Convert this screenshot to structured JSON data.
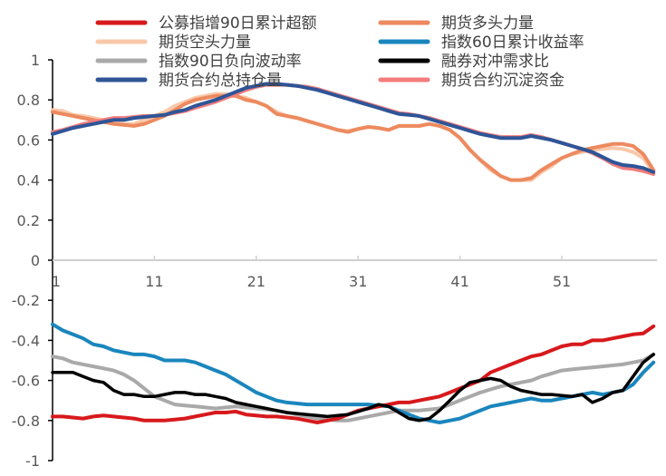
{
  "chart_data": {
    "type": "line",
    "title": "",
    "xlabel": "",
    "ylabel": "",
    "ylim": [
      -1,
      1
    ],
    "yticks": [
      "1",
      "0.8",
      "0.6",
      "0.4",
      "0.2",
      "0",
      "-0.2",
      "-0.4",
      "-0.6",
      "-0.8",
      "-1"
    ],
    "ytick_values": [
      1,
      0.8,
      0.6,
      0.4,
      0.2,
      0,
      -0.2,
      -0.4,
      -0.6,
      -0.8,
      -1
    ],
    "xlim": [
      1,
      60
    ],
    "xticks": [
      "1",
      "11",
      "21",
      "31",
      "41",
      "51"
    ],
    "xtick_values": [
      1,
      11,
      21,
      31,
      41,
      51
    ],
    "grid": false,
    "legend_position": "top",
    "series": [
      {
        "name": "公募指增90日累计超额",
        "color": "#d7191c",
        "values": [
          -0.78,
          -0.78,
          -0.785,
          -0.79,
          -0.78,
          -0.775,
          -0.78,
          -0.785,
          -0.79,
          -0.8,
          -0.8,
          -0.8,
          -0.795,
          -0.79,
          -0.78,
          -0.77,
          -0.76,
          -0.76,
          -0.755,
          -0.77,
          -0.775,
          -0.78,
          -0.78,
          -0.785,
          -0.79,
          -0.8,
          -0.81,
          -0.8,
          -0.79,
          -0.77,
          -0.75,
          -0.74,
          -0.73,
          -0.72,
          -0.71,
          -0.71,
          -0.7,
          -0.69,
          -0.68,
          -0.66,
          -0.64,
          -0.62,
          -0.6,
          -0.56,
          -0.54,
          -0.52,
          -0.5,
          -0.48,
          -0.47,
          -0.45,
          -0.43,
          -0.42,
          -0.42,
          -0.4,
          -0.4,
          -0.39,
          -0.38,
          -0.37,
          -0.365,
          -0.33
        ]
      },
      {
        "name": "期货多头力量",
        "color": "#ed8a5f",
        "values": [
          0.74,
          0.73,
          0.72,
          0.71,
          0.7,
          0.69,
          0.68,
          0.675,
          0.67,
          0.68,
          0.7,
          0.72,
          0.75,
          0.78,
          0.8,
          0.81,
          0.82,
          0.82,
          0.82,
          0.8,
          0.79,
          0.77,
          0.73,
          0.72,
          0.71,
          0.695,
          0.68,
          0.665,
          0.65,
          0.64,
          0.655,
          0.665,
          0.66,
          0.65,
          0.67,
          0.67,
          0.67,
          0.68,
          0.67,
          0.65,
          0.61,
          0.55,
          0.5,
          0.46,
          0.42,
          0.4,
          0.4,
          0.41,
          0.45,
          0.48,
          0.51,
          0.53,
          0.55,
          0.56,
          0.57,
          0.58,
          0.58,
          0.57,
          0.53,
          0.45
        ]
      },
      {
        "name": "期货空头力量",
        "color": "#f9c8a9",
        "values": [
          0.75,
          0.745,
          0.725,
          0.72,
          0.71,
          0.7,
          0.685,
          0.68,
          0.68,
          0.7,
          0.72,
          0.74,
          0.77,
          0.79,
          0.81,
          0.82,
          0.83,
          0.83,
          0.82,
          0.81,
          0.79,
          0.77,
          0.74,
          0.72,
          0.71,
          0.695,
          0.68,
          0.665,
          0.65,
          0.645,
          0.655,
          0.665,
          0.66,
          0.65,
          0.67,
          0.67,
          0.67,
          0.68,
          0.67,
          0.65,
          0.61,
          0.55,
          0.5,
          0.45,
          0.42,
          0.4,
          0.4,
          0.4,
          0.44,
          0.47,
          0.51,
          0.53,
          0.54,
          0.55,
          0.555,
          0.56,
          0.555,
          0.54,
          0.51,
          0.44
        ]
      },
      {
        "name": "指数60日累计收益率",
        "color": "#1a86bd",
        "values": [
          -0.32,
          -0.35,
          -0.37,
          -0.39,
          -0.42,
          -0.43,
          -0.45,
          -0.46,
          -0.47,
          -0.47,
          -0.48,
          -0.5,
          -0.5,
          -0.5,
          -0.51,
          -0.53,
          -0.55,
          -0.57,
          -0.6,
          -0.63,
          -0.66,
          -0.68,
          -0.7,
          -0.71,
          -0.715,
          -0.72,
          -0.72,
          -0.72,
          -0.72,
          -0.72,
          -0.72,
          -0.72,
          -0.725,
          -0.73,
          -0.75,
          -0.77,
          -0.79,
          -0.8,
          -0.81,
          -0.8,
          -0.79,
          -0.77,
          -0.75,
          -0.73,
          -0.72,
          -0.71,
          -0.7,
          -0.69,
          -0.7,
          -0.7,
          -0.69,
          -0.68,
          -0.67,
          -0.66,
          -0.67,
          -0.66,
          -0.65,
          -0.62,
          -0.56,
          -0.51
        ]
      },
      {
        "name": "指数90日负向波动率",
        "color": "#a9a9a9",
        "values": [
          -0.48,
          -0.49,
          -0.51,
          -0.52,
          -0.53,
          -0.54,
          -0.55,
          -0.57,
          -0.6,
          -0.64,
          -0.68,
          -0.7,
          -0.72,
          -0.725,
          -0.73,
          -0.735,
          -0.74,
          -0.735,
          -0.73,
          -0.735,
          -0.74,
          -0.745,
          -0.75,
          -0.76,
          -0.77,
          -0.78,
          -0.79,
          -0.795,
          -0.8,
          -0.8,
          -0.79,
          -0.78,
          -0.77,
          -0.76,
          -0.75,
          -0.75,
          -0.75,
          -0.745,
          -0.74,
          -0.72,
          -0.7,
          -0.68,
          -0.66,
          -0.645,
          -0.63,
          -0.62,
          -0.61,
          -0.6,
          -0.58,
          -0.565,
          -0.55,
          -0.545,
          -0.54,
          -0.535,
          -0.53,
          -0.525,
          -0.52,
          -0.51,
          -0.5,
          -0.47
        ]
      },
      {
        "name": "融券对冲需求比",
        "color": "#000000",
        "values": [
          -0.56,
          -0.56,
          -0.56,
          -0.58,
          -0.6,
          -0.61,
          -0.65,
          -0.67,
          -0.67,
          -0.68,
          -0.68,
          -0.67,
          -0.66,
          -0.66,
          -0.67,
          -0.67,
          -0.68,
          -0.69,
          -0.71,
          -0.72,
          -0.73,
          -0.74,
          -0.75,
          -0.76,
          -0.765,
          -0.77,
          -0.775,
          -0.78,
          -0.775,
          -0.77,
          -0.755,
          -0.74,
          -0.72,
          -0.73,
          -0.76,
          -0.79,
          -0.8,
          -0.79,
          -0.75,
          -0.7,
          -0.65,
          -0.61,
          -0.6,
          -0.59,
          -0.6,
          -0.63,
          -0.65,
          -0.66,
          -0.67,
          -0.67,
          -0.675,
          -0.68,
          -0.67,
          -0.71,
          -0.69,
          -0.66,
          -0.65,
          -0.58,
          -0.51,
          -0.47
        ]
      },
      {
        "name": "期货合约总持仓量",
        "color": "#2f5597",
        "values": [
          0.63,
          0.645,
          0.66,
          0.67,
          0.68,
          0.69,
          0.7,
          0.7,
          0.71,
          0.715,
          0.72,
          0.725,
          0.74,
          0.75,
          0.77,
          0.785,
          0.8,
          0.82,
          0.84,
          0.86,
          0.87,
          0.88,
          0.88,
          0.875,
          0.87,
          0.86,
          0.85,
          0.835,
          0.82,
          0.805,
          0.79,
          0.775,
          0.76,
          0.745,
          0.73,
          0.725,
          0.72,
          0.705,
          0.69,
          0.675,
          0.66,
          0.645,
          0.63,
          0.62,
          0.61,
          0.61,
          0.61,
          0.62,
          0.61,
          0.6,
          0.585,
          0.57,
          0.555,
          0.54,
          0.515,
          0.49,
          0.475,
          0.47,
          0.46,
          0.44
        ]
      },
      {
        "name": "期货合约沉淀资金",
        "color": "#f47c7c",
        "values": [
          0.64,
          0.65,
          0.665,
          0.68,
          0.69,
          0.7,
          0.71,
          0.71,
          0.715,
          0.72,
          0.72,
          0.725,
          0.735,
          0.745,
          0.76,
          0.775,
          0.79,
          0.81,
          0.83,
          0.85,
          0.865,
          0.875,
          0.875,
          0.875,
          0.87,
          0.865,
          0.855,
          0.84,
          0.825,
          0.81,
          0.795,
          0.78,
          0.765,
          0.75,
          0.735,
          0.73,
          0.72,
          0.71,
          0.695,
          0.68,
          0.665,
          0.65,
          0.635,
          0.625,
          0.615,
          0.615,
          0.615,
          0.625,
          0.615,
          0.6,
          0.585,
          0.57,
          0.555,
          0.535,
          0.51,
          0.48,
          0.46,
          0.455,
          0.445,
          0.43
        ]
      }
    ]
  }
}
